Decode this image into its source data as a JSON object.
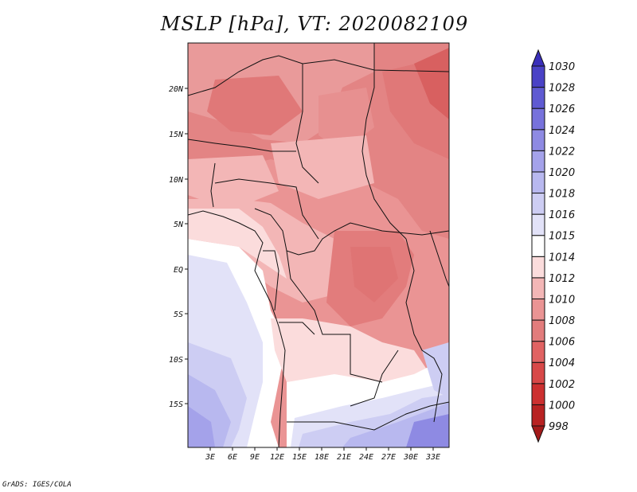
{
  "title": "MSLP [hPa], VT: 2020082109",
  "credit": "GrADS: IGES/COLA",
  "map": {
    "lon_ticks": [
      "3E",
      "6E",
      "9E",
      "12E",
      "15E",
      "18E",
      "21E",
      "24E",
      "27E",
      "30E",
      "33E"
    ],
    "lat_ticks": [
      "20N",
      "15N",
      "10N",
      "5N",
      "EQ",
      "5S",
      "10S",
      "15S"
    ]
  },
  "colorbar": {
    "levels": [
      "998",
      "1000",
      "1002",
      "1004",
      "1006",
      "1008",
      "1010",
      "1012",
      "1014",
      "1015",
      "1016",
      "1018",
      "1020",
      "1022",
      "1024",
      "1026",
      "1028",
      "1030"
    ],
    "colors": [
      "#a31a1a",
      "#b82222",
      "#cc3030",
      "#d84848",
      "#e06262",
      "#e27c7c",
      "#ea9494",
      "#f3b6b6",
      "#fbdcdc",
      "#ffffff",
      "#e2e2f8",
      "#cdcdf3",
      "#b8b8ef",
      "#a4a2ea",
      "#8e8ae3",
      "#7772dc",
      "#5f5ad2",
      "#4a42c6",
      "#3a2fba"
    ]
  }
}
